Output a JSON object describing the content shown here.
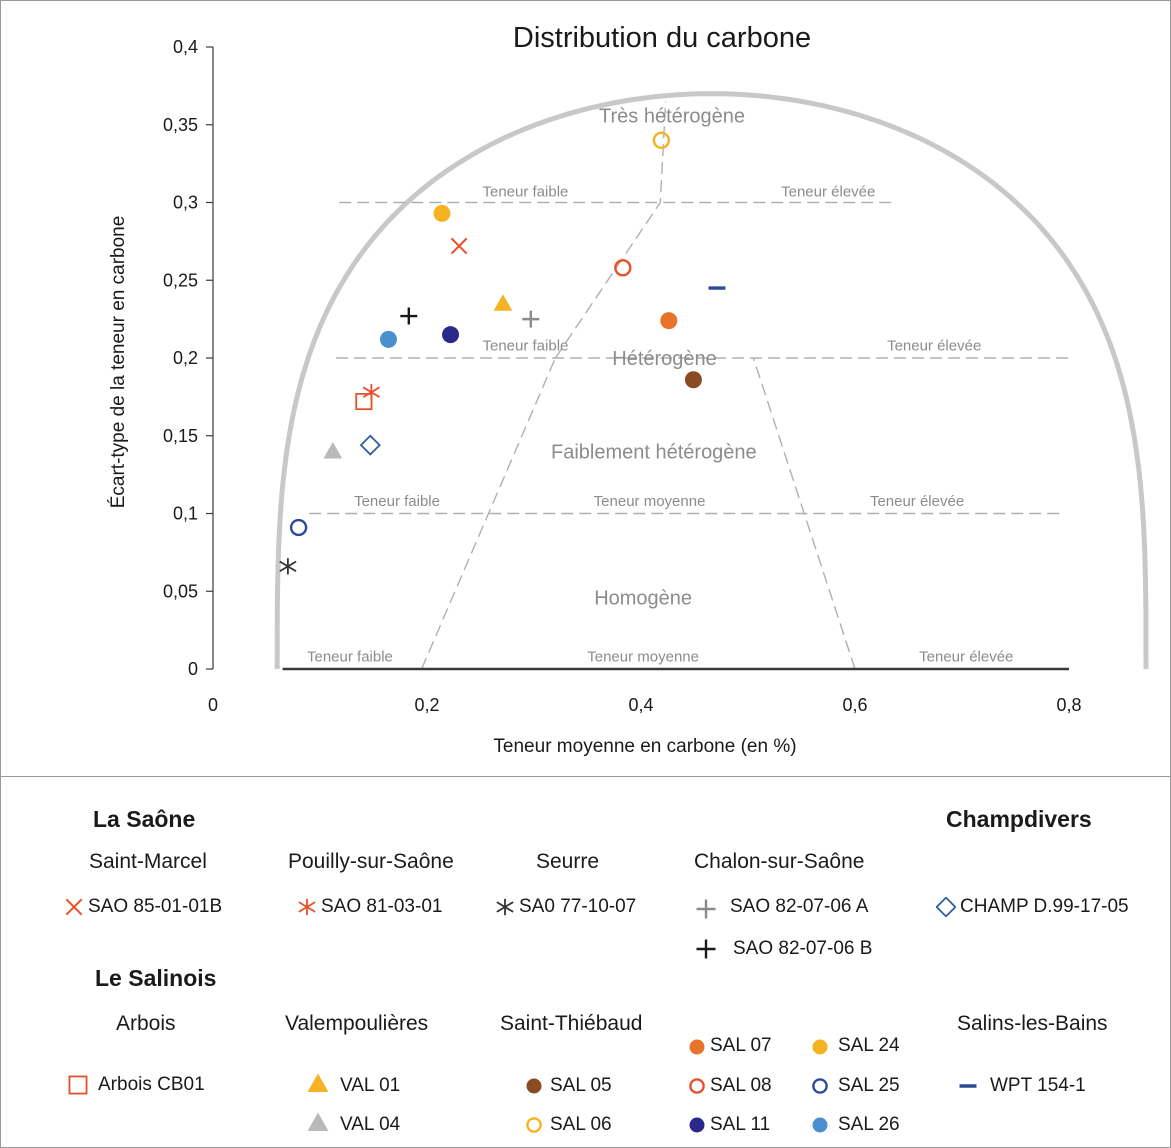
{
  "chart_data": {
    "type": "scatter",
    "title": "Distribution du carbone",
    "xlabel": "Teneur moyenne en carbone (en %)",
    "ylabel": "Écart-type de la teneur en carbone",
    "xlim": [
      0,
      0.8
    ],
    "ylim": [
      0,
      0.4
    ],
    "x_ticks": [
      "0",
      "0,2",
      "0,4",
      "0,6",
      "0,8"
    ],
    "y_ticks": [
      "0",
      "0,05",
      "0,1",
      "0,15",
      "0,2",
      "0,25",
      "0,3",
      "0,35",
      "0,4"
    ],
    "grid": false,
    "legend_position": "bottom",
    "zones": [
      "Très hétérogène",
      "Hétérogène",
      "Faiblement hétérogène",
      "Homogène"
    ],
    "zone_sublabels": {
      "tres_heterogene": [
        "Teneur faible",
        "Teneur élevée"
      ],
      "heterogene": [
        "Teneur faible",
        "Teneur élevée"
      ],
      "faiblement_heterogene": [
        "Teneur faible",
        "Teneur moyenne",
        "Teneur élevée"
      ],
      "homogene": [
        "Teneur faible",
        "Teneur moyenne",
        "Teneur élevée"
      ]
    },
    "series": [
      {
        "name": "SAO 85-01-01B",
        "marker": "x",
        "color": "#e8502a",
        "x": [
          0.23
        ],
        "y": [
          0.272
        ]
      },
      {
        "name": "SAO 81-03-01",
        "marker": "asterisk",
        "color": "#e8502a",
        "x": [
          0.148
        ],
        "y": [
          0.178
        ]
      },
      {
        "name": "SA0 77-10-07",
        "marker": "asterisk",
        "color": "#333333",
        "x": [
          0.07
        ],
        "y": [
          0.066
        ]
      },
      {
        "name": "SAO 82-07-06 A",
        "marker": "plus",
        "color": "#8a8a8a",
        "x": [
          0.297
        ],
        "y": [
          0.225
        ]
      },
      {
        "name": "SAO 82-07-06 B",
        "marker": "plus",
        "color": "#1a1a1a",
        "x": [
          0.183
        ],
        "y": [
          0.227
        ]
      },
      {
        "name": "CHAMP D.99-17-05",
        "marker": "diamond-open",
        "color": "#2f5fa8",
        "x": [
          0.147
        ],
        "y": [
          0.144
        ]
      },
      {
        "name": "Arbois CB01",
        "marker": "square-open",
        "color": "#e8502a",
        "x": [
          0.141
        ],
        "y": [
          0.172
        ]
      },
      {
        "name": "VAL 01",
        "marker": "triangle",
        "color": "#f5b324",
        "x": [
          0.271
        ],
        "y": [
          0.235
        ]
      },
      {
        "name": "VAL 04",
        "marker": "triangle",
        "color": "#b9b9b9",
        "x": [
          0.112
        ],
        "y": [
          0.14
        ]
      },
      {
        "name": "SAL 05",
        "marker": "circle",
        "color": "#8a4a22",
        "x": [
          0.449
        ],
        "y": [
          0.186
        ]
      },
      {
        "name": "SAL 06",
        "marker": "circle-open",
        "color": "#f5b324",
        "x": [
          0.419
        ],
        "y": [
          0.34
        ]
      },
      {
        "name": "SAL 07",
        "marker": "circle",
        "color": "#e8742a",
        "x": [
          0.426
        ],
        "y": [
          0.224
        ]
      },
      {
        "name": "SAL 08",
        "marker": "circle-open",
        "color": "#e8502a",
        "x": [
          0.383
        ],
        "y": [
          0.258
        ]
      },
      {
        "name": "SAL 11",
        "marker": "circle",
        "color": "#2b2a8c",
        "x": [
          0.222
        ],
        "y": [
          0.215
        ]
      },
      {
        "name": "SAL 24",
        "marker": "circle",
        "color": "#f5b324",
        "x": [
          0.214
        ],
        "y": [
          0.293
        ]
      },
      {
        "name": "SAL 25",
        "marker": "circle-open",
        "color": "#2b4a9c",
        "x": [
          0.08
        ],
        "y": [
          0.091
        ]
      },
      {
        "name": "SAL 26",
        "marker": "circle",
        "color": "#4a8fd0",
        "x": [
          0.164
        ],
        "y": [
          0.212
        ]
      },
      {
        "name": "WPT 154-1",
        "marker": "dash",
        "color": "#2b4a9c",
        "x": [
          0.471
        ],
        "y": [
          0.245
        ]
      }
    ]
  },
  "legend": {
    "groups": [
      "La Saône",
      "Champdivers",
      "Le Salinois"
    ],
    "sites": [
      "Saint-Marcel",
      "Pouilly-sur-Saône",
      "Seurre",
      "Chalon-sur-Saône",
      "Arbois",
      "Valempoulières",
      "Saint-Thiébaud",
      "Salins-les-Bains"
    ]
  }
}
